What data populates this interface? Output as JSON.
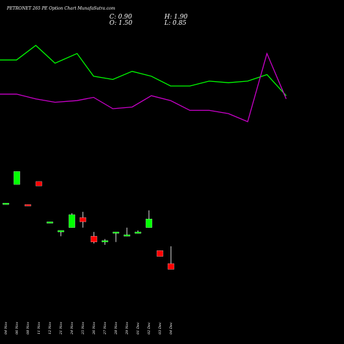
{
  "chart_data": {
    "type": "candlestick",
    "title": "PETRONET 265 PE Option Chart MunafaSutra.com",
    "ohlc_labels": {
      "close": "C: 0.90",
      "high": "H: 1.90",
      "open": "O: 1.50",
      "low": "L: 0.85"
    },
    "categories": [
      "04 Nov",
      "06 Nov",
      "08 Nov",
      "11 Nov",
      "12 Nov",
      "21 Nov",
      "24 Nov",
      "25 Nov",
      "26 Nov",
      "27 Nov",
      "28 Nov",
      "29 Nov",
      "01 Dec",
      "02 Dec",
      "03 Dec",
      "04 Dec"
    ],
    "x_slots": [
      1,
      3,
      5,
      7,
      9,
      11,
      13,
      15,
      17,
      19,
      21,
      23,
      25,
      27,
      29,
      31
    ],
    "candle_scale": {
      "ymin": 0.5,
      "ymax": 6.0
    },
    "candles": [
      {
        "o": 4.2,
        "h": 4.2,
        "l": 4.2,
        "c": 4.2,
        "color": "#00ff00"
      },
      {
        "o": 4.85,
        "h": 5.3,
        "l": 4.85,
        "c": 5.3,
        "color": "#00ff00"
      },
      {
        "o": 4.15,
        "h": 4.15,
        "l": 4.1,
        "c": 4.1,
        "color": "#ff0000"
      },
      {
        "o": 4.95,
        "h": 4.95,
        "l": 4.8,
        "c": 4.8,
        "color": "#ff0000"
      },
      {
        "o": 3.55,
        "h": 3.55,
        "l": 3.55,
        "c": 3.55,
        "color": "#00ff00"
      },
      {
        "o": 3.2,
        "h": 3.25,
        "l": 3.05,
        "c": 3.25,
        "color": "#00ff00"
      },
      {
        "o": 3.35,
        "h": 3.85,
        "l": 3.35,
        "c": 3.8,
        "color": "#00ff00"
      },
      {
        "o": 3.7,
        "h": 3.9,
        "l": 3.35,
        "c": 3.55,
        "color": "#ff0000"
      },
      {
        "o": 3.05,
        "h": 3.2,
        "l": 2.8,
        "c": 2.85,
        "color": "#ff0000"
      },
      {
        "o": 2.85,
        "h": 2.95,
        "l": 2.75,
        "c": 2.9,
        "color": "#00ff00"
      },
      {
        "o": 3.2,
        "h": 3.2,
        "l": 2.85,
        "c": 3.2,
        "color": "#00ff00"
      },
      {
        "o": 3.05,
        "h": 3.35,
        "l": 3.05,
        "c": 3.1,
        "color": "#00ff00"
      },
      {
        "o": 3.15,
        "h": 3.25,
        "l": 3.15,
        "c": 3.2,
        "color": "#00ff00"
      },
      {
        "o": 3.35,
        "h": 3.95,
        "l": 3.35,
        "c": 3.65,
        "color": "#00ff00"
      },
      {
        "o": 2.55,
        "h": 2.55,
        "l": 2.35,
        "c": 2.35,
        "color": "#ff0000"
      },
      {
        "o": 2.1,
        "h": 2.7,
        "l": 1.9,
        "c": 1.9,
        "color": "#ff0000"
      }
    ],
    "line_scale": {
      "ymin": 0,
      "ymax": 10
    },
    "series": [
      {
        "color": "#00ff00",
        "x_slots": [
          0,
          3,
          6.5,
          10,
          14,
          17,
          20.5,
          24,
          27.5,
          31,
          34.5,
          38,
          41.5,
          45,
          48.5,
          52
        ],
        "values": [
          8.0,
          8.0,
          8.9,
          7.8,
          8.4,
          7.0,
          6.8,
          7.3,
          7.0,
          6.4,
          6.4,
          6.7,
          6.6,
          6.7,
          7.1,
          5.8
        ]
      },
      {
        "color": "#cc00cc",
        "x_slots": [
          0,
          3,
          6.5,
          10,
          14,
          17,
          20.5,
          24,
          27.5,
          31,
          34.5,
          38,
          41.5,
          45,
          48.5,
          52
        ],
        "values": [
          5.9,
          5.9,
          5.6,
          5.4,
          5.5,
          5.7,
          5.0,
          5.1,
          5.8,
          5.5,
          4.9,
          4.9,
          4.7,
          4.2,
          8.4,
          5.6
        ]
      }
    ],
    "grid": false,
    "legend": "none"
  }
}
